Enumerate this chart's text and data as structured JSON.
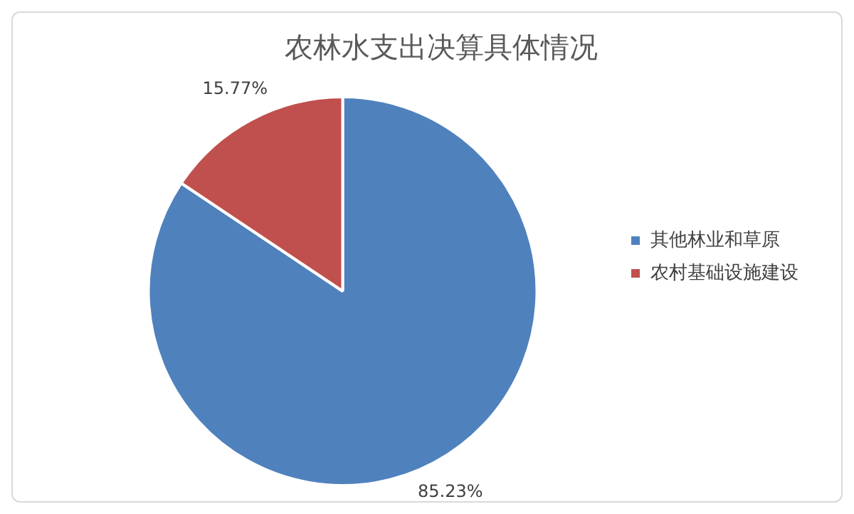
{
  "chart_data": {
    "type": "pie",
    "title": "农林水支出决算具体情况",
    "categories": [
      "其他林业和草原",
      "农村基础设施建设"
    ],
    "values": [
      85.23,
      15.77
    ],
    "colors": [
      "#4f81bd",
      "#c0504d"
    ],
    "value_labels": [
      "85.23%",
      "15.77%"
    ],
    "legend": "right"
  }
}
